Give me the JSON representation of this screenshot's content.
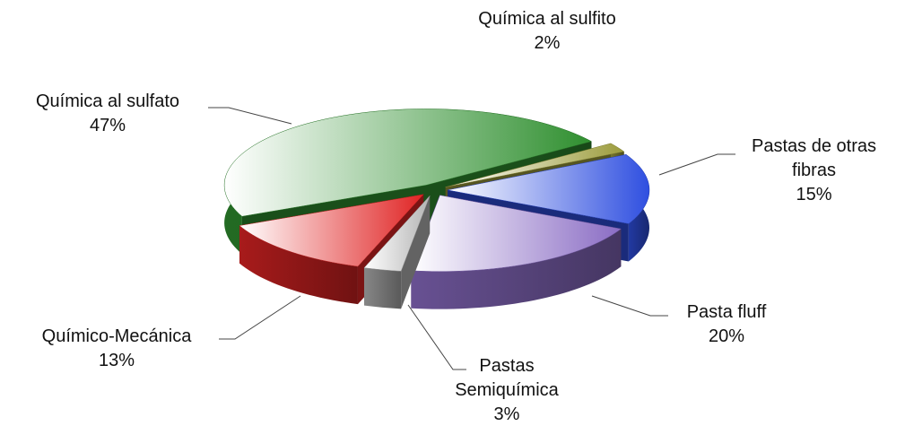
{
  "chart_data": {
    "type": "pie3d",
    "categories": [
      "Química al sulfito",
      "Pastas de otras fibras",
      "Pasta fluff",
      "Pastas Semiquímica",
      "Químico-Mecánica",
      "Química al sulfato"
    ],
    "values": [
      2,
      15,
      20,
      3,
      13,
      47
    ],
    "value_labels": [
      "2%",
      "15%",
      "20%",
      "3%",
      "13%",
      "47%"
    ],
    "colors": [
      "#9c9c3c",
      "#2f4fe0",
      "#8a6cc4",
      "#b4b4b4",
      "#e02424",
      "#2f8f2f"
    ]
  }
}
